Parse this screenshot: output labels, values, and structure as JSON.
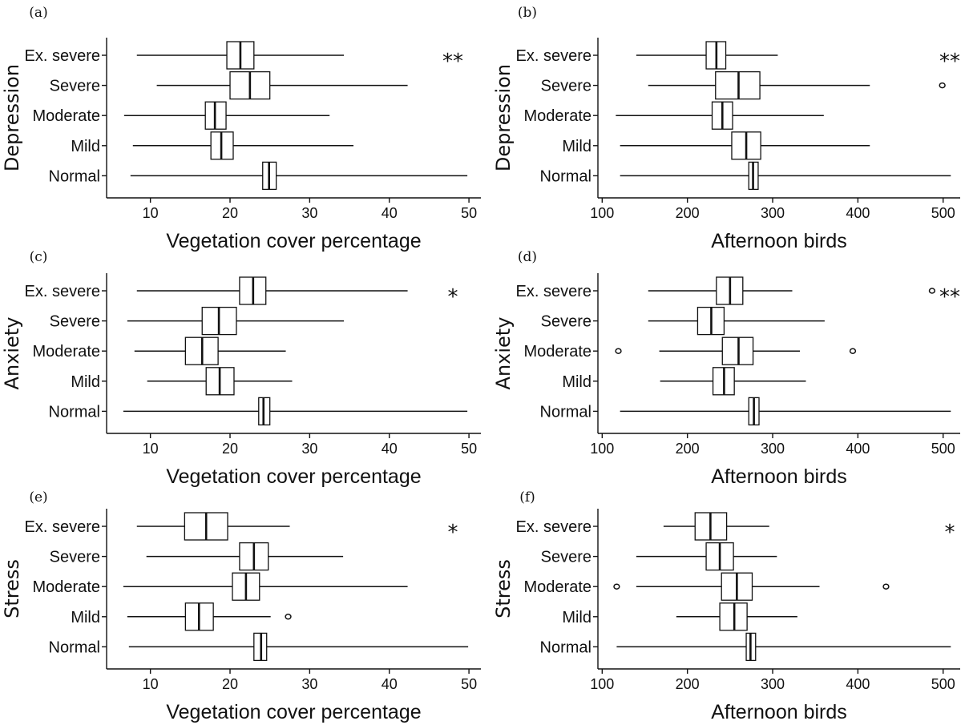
{
  "chart_data": [
    {
      "panel": "(a)",
      "type": "boxplot",
      "ylabel": "Depression",
      "xlabel": "Vegetation cover percentage",
      "categories": [
        "Ex. severe",
        "Severe",
        "Moderate",
        "Mild",
        "Normal"
      ],
      "xlim": [
        4.5,
        51.5
      ],
      "xticks": [
        10,
        20,
        30,
        40,
        50
      ],
      "significance": "**",
      "boxes": [
        {
          "min": 8.3,
          "q1": 19.6,
          "median": 21.3,
          "q3": 23.0,
          "max": 34.3,
          "outliers": []
        },
        {
          "min": 10.8,
          "q1": 20.0,
          "median": 22.5,
          "q3": 25.0,
          "max": 42.3,
          "outliers": []
        },
        {
          "min": 6.7,
          "q1": 16.9,
          "median": 18.1,
          "q3": 19.5,
          "max": 32.5,
          "outliers": []
        },
        {
          "min": 7.8,
          "q1": 17.6,
          "median": 18.9,
          "q3": 20.4,
          "max": 35.5,
          "outliers": []
        },
        {
          "min": 7.5,
          "q1": 24.1,
          "median": 24.9,
          "q3": 25.8,
          "max": 49.8,
          "outliers": []
        }
      ]
    },
    {
      "panel": "(b)",
      "type": "boxplot",
      "ylabel": "Depression",
      "xlabel": "Afternoon birds",
      "categories": [
        "Ex. severe",
        "Severe",
        "Moderate",
        "Mild",
        "Normal"
      ],
      "xlim": [
        95,
        520
      ],
      "xticks": [
        100,
        200,
        300,
        400,
        500
      ],
      "significance": "**",
      "boxes": [
        {
          "min": 140,
          "q1": 222,
          "median": 234,
          "q3": 245,
          "max": 306,
          "outliers": []
        },
        {
          "min": 154,
          "q1": 233,
          "median": 260,
          "q3": 285,
          "max": 414,
          "outliers": [
            499
          ]
        },
        {
          "min": 116,
          "q1": 229,
          "median": 241,
          "q3": 253,
          "max": 360,
          "outliers": []
        },
        {
          "min": 121,
          "q1": 252,
          "median": 269,
          "q3": 286,
          "max": 414,
          "outliers": []
        },
        {
          "min": 121,
          "q1": 272,
          "median": 277,
          "q3": 283,
          "max": 509,
          "outliers": []
        }
      ]
    },
    {
      "panel": "(c)",
      "type": "boxplot",
      "ylabel": "Anxiety",
      "xlabel": "Vegetation cover percentage",
      "categories": [
        "Ex. severe",
        "Severe",
        "Moderate",
        "Mild",
        "Normal"
      ],
      "xlim": [
        4.5,
        51.5
      ],
      "xticks": [
        10,
        20,
        30,
        40,
        50
      ],
      "significance": "*",
      "boxes": [
        {
          "min": 8.3,
          "q1": 21.2,
          "median": 22.9,
          "q3": 24.5,
          "max": 42.3,
          "outliers": []
        },
        {
          "min": 7.1,
          "q1": 16.5,
          "median": 18.6,
          "q3": 20.8,
          "max": 34.3,
          "outliers": []
        },
        {
          "min": 8.0,
          "q1": 14.4,
          "median": 16.5,
          "q3": 18.5,
          "max": 27.0,
          "outliers": []
        },
        {
          "min": 9.6,
          "q1": 17.0,
          "median": 18.7,
          "q3": 20.5,
          "max": 27.8,
          "outliers": []
        },
        {
          "min": 6.6,
          "q1": 23.6,
          "median": 24.2,
          "q3": 25.0,
          "max": 49.8,
          "outliers": []
        }
      ]
    },
    {
      "panel": "(d)",
      "type": "boxplot",
      "ylabel": "Anxiety",
      "xlabel": "Afternoon birds",
      "categories": [
        "Ex. severe",
        "Severe",
        "Moderate",
        "Mild",
        "Normal"
      ],
      "xlim": [
        95,
        520
      ],
      "xticks": [
        100,
        200,
        300,
        400,
        500
      ],
      "significance": "**",
      "boxes": [
        {
          "min": 154,
          "q1": 234,
          "median": 250,
          "q3": 265,
          "max": 323,
          "outliers": [
            487
          ]
        },
        {
          "min": 154,
          "q1": 212,
          "median": 228,
          "q3": 243,
          "max": 361,
          "outliers": []
        },
        {
          "min": 167,
          "q1": 241,
          "median": 260,
          "q3": 277,
          "max": 332,
          "outliers": [
            119,
            394
          ]
        },
        {
          "min": 168,
          "q1": 230,
          "median": 243,
          "q3": 255,
          "max": 339,
          "outliers": []
        },
        {
          "min": 121,
          "q1": 272,
          "median": 278,
          "q3": 284,
          "max": 509,
          "outliers": []
        }
      ]
    },
    {
      "panel": "(e)",
      "type": "boxplot",
      "ylabel": "Stress",
      "xlabel": "Vegetation cover percentage",
      "categories": [
        "Ex. severe",
        "Severe",
        "Moderate",
        "Mild",
        "Normal"
      ],
      "xlim": [
        4.5,
        51.5
      ],
      "xticks": [
        10,
        20,
        30,
        40,
        50
      ],
      "significance": "*",
      "boxes": [
        {
          "min": 8.3,
          "q1": 14.3,
          "median": 17.0,
          "q3": 19.7,
          "max": 27.5,
          "outliers": []
        },
        {
          "min": 9.5,
          "q1": 21.2,
          "median": 23.0,
          "q3": 24.8,
          "max": 34.2,
          "outliers": []
        },
        {
          "min": 6.6,
          "q1": 20.3,
          "median": 22.0,
          "q3": 23.7,
          "max": 42.3,
          "outliers": []
        },
        {
          "min": 7.1,
          "q1": 14.4,
          "median": 16.1,
          "q3": 17.9,
          "max": 25.1,
          "outliers": [
            27.3
          ]
        },
        {
          "min": 7.3,
          "q1": 23.0,
          "median": 23.9,
          "q3": 24.6,
          "max": 49.9,
          "outliers": []
        }
      ]
    },
    {
      "panel": "(f)",
      "type": "boxplot",
      "ylabel": "Stress",
      "xlabel": "Afternoon birds",
      "categories": [
        "Ex. severe",
        "Severe",
        "Moderate",
        "Mild",
        "Normal"
      ],
      "xlim": [
        95,
        520
      ],
      "xticks": [
        100,
        200,
        300,
        400,
        500
      ],
      "significance": "*",
      "boxes": [
        {
          "min": 172,
          "q1": 209,
          "median": 227,
          "q3": 246,
          "max": 296,
          "outliers": []
        },
        {
          "min": 140,
          "q1": 222,
          "median": 238,
          "q3": 254,
          "max": 305,
          "outliers": []
        },
        {
          "min": 140,
          "q1": 240,
          "median": 258,
          "q3": 276,
          "max": 355,
          "outliers": [
            117,
            433
          ]
        },
        {
          "min": 187,
          "q1": 238,
          "median": 255,
          "q3": 270,
          "max": 329,
          "outliers": []
        },
        {
          "min": 117,
          "q1": 269,
          "median": 274,
          "q3": 280,
          "max": 509,
          "outliers": []
        }
      ]
    }
  ]
}
